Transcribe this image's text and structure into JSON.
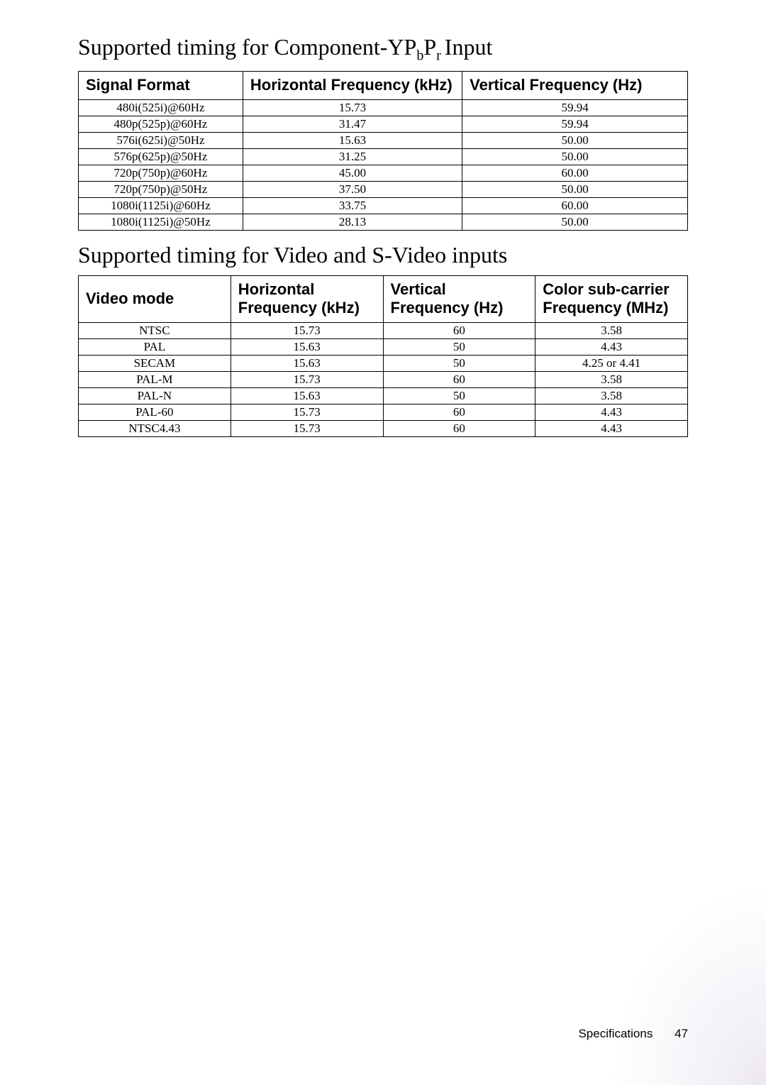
{
  "section1": {
    "title_prefix": "Supported timing for Component-YP",
    "title_sub1": "b",
    "title_mid": "P",
    "title_sub2": "r ",
    "title_suffix": "Input",
    "headers": [
      "Signal Format",
      "Horizontal Frequency (kHz)",
      "Vertical Frequency (Hz)"
    ],
    "rows": [
      [
        "480i(525i)@60Hz",
        "15.73",
        "59.94"
      ],
      [
        "480p(525p)@60Hz",
        "31.47",
        "59.94"
      ],
      [
        "576i(625i)@50Hz",
        "15.63",
        "50.00"
      ],
      [
        "576p(625p)@50Hz",
        "31.25",
        "50.00"
      ],
      [
        "720p(750p)@60Hz",
        "45.00",
        "60.00"
      ],
      [
        "720p(750p)@50Hz",
        "37.50",
        "50.00"
      ],
      [
        "1080i(1125i)@60Hz",
        "33.75",
        "60.00"
      ],
      [
        "1080i(1125i)@50Hz",
        "28.13",
        "50.00"
      ]
    ]
  },
  "section2": {
    "title": "Supported timing for Video and S-Video inputs",
    "headers": [
      "Video mode",
      "Horizontal Frequency (kHz)",
      "Vertical Frequency (Hz)",
      "Color sub-carrier Frequency (MHz)"
    ],
    "rows": [
      [
        "NTSC",
        "15.73",
        "60",
        "3.58"
      ],
      [
        "PAL",
        "15.63",
        "50",
        "4.43"
      ],
      [
        "SECAM",
        "15.63",
        "50",
        "4.25 or 4.41"
      ],
      [
        "PAL-M",
        "15.73",
        "60",
        "3.58"
      ],
      [
        "PAL-N",
        "15.63",
        "50",
        "3.58"
      ],
      [
        "PAL-60",
        "15.73",
        "60",
        "4.43"
      ],
      [
        "NTSC4.43",
        "15.73",
        "60",
        "4.43"
      ]
    ]
  },
  "footer": {
    "label": "Specifications",
    "page": "47"
  }
}
